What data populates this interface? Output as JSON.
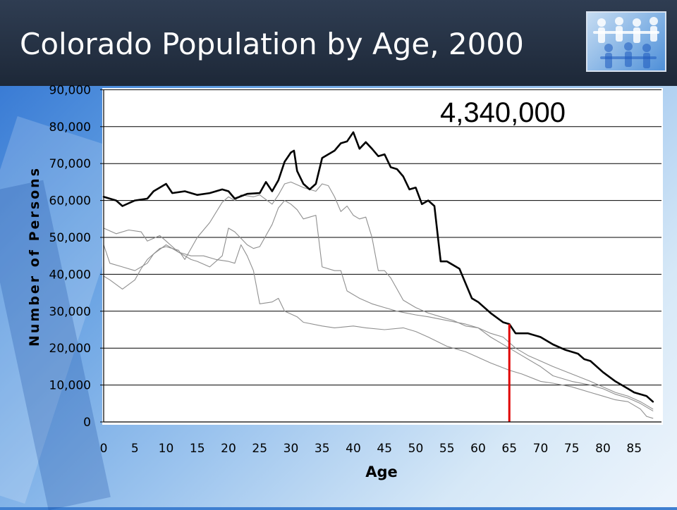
{
  "slide": {
    "title": "Colorado Population by Age, 2000",
    "colors": {
      "title_bar": "#1f2a3b",
      "title_text": "#ffffff",
      "background_accent": "#2c6fd0"
    },
    "logo_icon": "people-chain-icon"
  },
  "chart_data": {
    "type": "line",
    "annotation": "4,340,000",
    "xlabel": "Age",
    "ylabel": "Number of Persons",
    "xlim": [
      0,
      89
    ],
    "ylim": [
      0,
      90000
    ],
    "x_ticks": [
      "0",
      "5",
      "10",
      "15",
      "20",
      "25",
      "30",
      "35",
      "40",
      "45",
      "50",
      "55",
      "60",
      "65",
      "70",
      "75",
      "80",
      "85"
    ],
    "y_ticks": [
      "0",
      "10,000",
      "20,000",
      "30,000",
      "40,000",
      "50,000",
      "60,000",
      "70,000",
      "80,000",
      "90,000"
    ],
    "grid": true,
    "marker_line": {
      "x": 65,
      "y_range": [
        0,
        26500
      ],
      "color": "#e00000"
    },
    "series": [
      {
        "highlight": true,
        "color": "#000000",
        "points": [
          [
            0,
            61000
          ],
          [
            2,
            60000
          ],
          [
            3,
            58500
          ],
          [
            5,
            60000
          ],
          [
            7,
            60500
          ],
          [
            8,
            62500
          ],
          [
            10,
            64500
          ],
          [
            11,
            62000
          ],
          [
            13,
            62500
          ],
          [
            15,
            61500
          ],
          [
            17,
            62000
          ],
          [
            19,
            63000
          ],
          [
            20,
            62500
          ],
          [
            21,
            60500
          ],
          [
            23,
            61800
          ],
          [
            25,
            62000
          ],
          [
            26,
            65000
          ],
          [
            27,
            62500
          ],
          [
            28,
            65500
          ],
          [
            29,
            70500
          ],
          [
            30,
            73000
          ],
          [
            30.5,
            73500
          ],
          [
            31,
            68000
          ],
          [
            32,
            64500
          ],
          [
            33,
            63000
          ],
          [
            34,
            64500
          ],
          [
            35,
            71500
          ],
          [
            37,
            73500
          ],
          [
            38,
            75500
          ],
          [
            39,
            76000
          ],
          [
            40,
            78500
          ],
          [
            41,
            74000
          ],
          [
            42,
            75800
          ],
          [
            43,
            74000
          ],
          [
            44,
            72000
          ],
          [
            45,
            72500
          ],
          [
            46,
            69000
          ],
          [
            47,
            68500
          ],
          [
            48,
            66500
          ],
          [
            49,
            63000
          ],
          [
            50,
            63500
          ],
          [
            51,
            59000
          ],
          [
            52,
            60000
          ],
          [
            53,
            58500
          ],
          [
            54,
            43500
          ],
          [
            55,
            43500
          ],
          [
            57,
            41500
          ],
          [
            58,
            37500
          ],
          [
            59,
            33500
          ],
          [
            60,
            32500
          ],
          [
            62,
            29500
          ],
          [
            64,
            27000
          ],
          [
            65,
            26500
          ],
          [
            66,
            24000
          ],
          [
            68,
            24000
          ],
          [
            70,
            23000
          ],
          [
            72,
            21000
          ],
          [
            74,
            19500
          ],
          [
            76,
            18500
          ],
          [
            77,
            17000
          ],
          [
            78,
            16500
          ],
          [
            80,
            13500
          ],
          [
            82,
            11000
          ],
          [
            84,
            9000
          ],
          [
            85,
            8000
          ],
          [
            87,
            7000
          ],
          [
            88,
            5500
          ]
        ]
      },
      {
        "highlight": false,
        "color": "#8f8f8f",
        "points": [
          [
            0,
            52500
          ],
          [
            2,
            51000
          ],
          [
            4,
            52000
          ],
          [
            6,
            51500
          ],
          [
            7,
            49000
          ],
          [
            9,
            50500
          ],
          [
            10,
            49000
          ],
          [
            12,
            46000
          ],
          [
            14,
            45000
          ],
          [
            16,
            45000
          ],
          [
            18,
            44000
          ],
          [
            20,
            43500
          ],
          [
            21,
            43000
          ],
          [
            22,
            48000
          ],
          [
            23,
            45000
          ],
          [
            24,
            41000
          ],
          [
            25,
            32000
          ],
          [
            27,
            32500
          ],
          [
            28,
            33500
          ],
          [
            29,
            30000
          ],
          [
            31,
            28500
          ],
          [
            32,
            27000
          ],
          [
            35,
            26000
          ],
          [
            37,
            25500
          ],
          [
            40,
            26000
          ],
          [
            42,
            25500
          ],
          [
            45,
            25000
          ],
          [
            48,
            25500
          ],
          [
            50,
            24500
          ],
          [
            52,
            23000
          ],
          [
            55,
            20500
          ],
          [
            58,
            19000
          ],
          [
            60,
            17500
          ],
          [
            62,
            16000
          ],
          [
            65,
            14000
          ],
          [
            67,
            13000
          ],
          [
            70,
            11000
          ],
          [
            72,
            10500
          ],
          [
            75,
            9500
          ],
          [
            78,
            8000
          ],
          [
            80,
            7000
          ],
          [
            82,
            6000
          ],
          [
            84,
            5500
          ],
          [
            86,
            3500
          ],
          [
            87,
            1500
          ],
          [
            88,
            1000
          ]
        ]
      },
      {
        "highlight": false,
        "color": "#8f8f8f",
        "points": [
          [
            0,
            48000
          ],
          [
            1,
            43000
          ],
          [
            3,
            42000
          ],
          [
            5,
            41000
          ],
          [
            7,
            43000
          ],
          [
            8,
            45500
          ],
          [
            10,
            48000
          ],
          [
            12,
            46000
          ],
          [
            14,
            44000
          ],
          [
            15,
            43500
          ],
          [
            17,
            42000
          ],
          [
            19,
            45000
          ],
          [
            20,
            52500
          ],
          [
            21,
            51500
          ],
          [
            23,
            48000
          ],
          [
            24,
            47000
          ],
          [
            25,
            47500
          ],
          [
            27,
            53500
          ],
          [
            28,
            58000
          ],
          [
            29,
            60000
          ],
          [
            30,
            59000
          ],
          [
            31,
            57500
          ],
          [
            32,
            55000
          ],
          [
            33,
            55500
          ],
          [
            34,
            56000
          ],
          [
            35,
            42000
          ],
          [
            37,
            41000
          ],
          [
            38,
            41000
          ],
          [
            39,
            35500
          ],
          [
            41,
            33500
          ],
          [
            43,
            32000
          ],
          [
            45,
            31000
          ],
          [
            47,
            30000
          ],
          [
            50,
            29000
          ],
          [
            52,
            28500
          ],
          [
            55,
            27500
          ],
          [
            58,
            26500
          ],
          [
            60,
            25500
          ],
          [
            62,
            23000
          ],
          [
            65,
            20000
          ],
          [
            67,
            18000
          ],
          [
            70,
            15000
          ],
          [
            72,
            12500
          ],
          [
            75,
            11000
          ],
          [
            78,
            10000
          ],
          [
            80,
            9000
          ],
          [
            82,
            7500
          ],
          [
            84,
            6500
          ],
          [
            86,
            5000
          ],
          [
            88,
            3000
          ]
        ]
      },
      {
        "highlight": false,
        "color": "#8f8f8f",
        "points": [
          [
            0,
            39500
          ],
          [
            1,
            38500
          ],
          [
            3,
            36000
          ],
          [
            5,
            38500
          ],
          [
            6,
            41500
          ],
          [
            7,
            44000
          ],
          [
            9,
            47000
          ],
          [
            10,
            47500
          ],
          [
            12,
            46500
          ],
          [
            13,
            44000
          ],
          [
            15,
            50000
          ],
          [
            17,
            54000
          ],
          [
            19,
            59500
          ],
          [
            20,
            61000
          ],
          [
            21,
            60000
          ],
          [
            22,
            61500
          ],
          [
            24,
            61000
          ],
          [
            25,
            61500
          ],
          [
            27,
            59000
          ],
          [
            28,
            61500
          ],
          [
            29,
            64500
          ],
          [
            30,
            65000
          ],
          [
            32,
            63500
          ],
          [
            34,
            62500
          ],
          [
            35,
            64500
          ],
          [
            36,
            64000
          ],
          [
            37,
            61000
          ],
          [
            38,
            57000
          ],
          [
            39,
            58500
          ],
          [
            40,
            56000
          ],
          [
            41,
            55000
          ],
          [
            42,
            55500
          ],
          [
            43,
            50000
          ],
          [
            44,
            41000
          ],
          [
            45,
            41000
          ],
          [
            46,
            39000
          ],
          [
            47,
            36000
          ],
          [
            48,
            33000
          ],
          [
            50,
            31000
          ],
          [
            52,
            29500
          ],
          [
            54,
            28500
          ],
          [
            56,
            27500
          ],
          [
            58,
            26000
          ],
          [
            60,
            25500
          ],
          [
            62,
            24000
          ],
          [
            64,
            23000
          ],
          [
            66,
            20000
          ],
          [
            68,
            18000
          ],
          [
            70,
            16500
          ],
          [
            72,
            15000
          ],
          [
            75,
            13000
          ],
          [
            78,
            11000
          ],
          [
            80,
            9500
          ],
          [
            82,
            8000
          ],
          [
            84,
            7000
          ],
          [
            86,
            5500
          ],
          [
            88,
            3500
          ]
        ]
      }
    ]
  }
}
